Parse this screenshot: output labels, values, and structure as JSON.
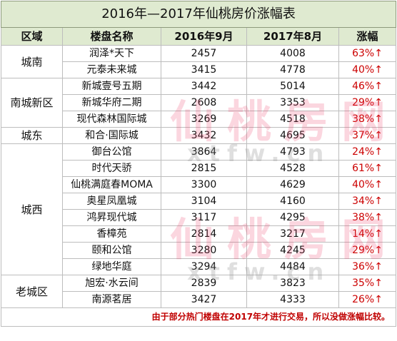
{
  "title": "2016年—2017年仙桃房价涨幅表",
  "headers": [
    "区域",
    "楼盘名称",
    "2016年9月",
    "2017年8月",
    "涨幅"
  ],
  "regions": [
    "城南",
    "南城新区",
    "城东",
    "城西",
    "老城区"
  ],
  "rows": [
    {
      "name": "润泽*天下",
      "p2016": "2457",
      "p2017": "4008",
      "pct": "63%↑"
    },
    {
      "name": "元泰未来城",
      "p2016": "3415",
      "p2017": "4778",
      "pct": "40%↑"
    },
    {
      "name": "新城壹号五期",
      "p2016": "3442",
      "p2017": "5014",
      "pct": "46%↑"
    },
    {
      "name": "新城华府二期",
      "p2016": "2608",
      "p2017": "3353",
      "pct": "29%↑"
    },
    {
      "name": "现代森林国际城",
      "p2016": "3269",
      "p2017": "4518",
      "pct": "38%↑"
    },
    {
      "name": "和合·国际城",
      "p2016": "3432",
      "p2017": "4695",
      "pct": "37%↑"
    },
    {
      "name": "御台公馆",
      "p2016": "3864",
      "p2017": "4793",
      "pct": "24%↑"
    },
    {
      "name": "时代天骄",
      "p2016": "2815",
      "p2017": "4528",
      "pct": "61%↑"
    },
    {
      "name": "仙桃满庭春MOMA",
      "p2016": "3300",
      "p2017": "4629",
      "pct": "40%↑"
    },
    {
      "name": "奥星凤凰城",
      "p2016": "3104",
      "p2017": "4160",
      "pct": "34%↑"
    },
    {
      "name": "鸿昇现代城",
      "p2016": "3117",
      "p2017": "4295",
      "pct": "38%↑"
    },
    {
      "name": "香樟苑",
      "p2016": "2814",
      "p2017": "3217",
      "pct": "14%↑"
    },
    {
      "name": "颐和公馆",
      "p2016": "3280",
      "p2017": "4245",
      "pct": "29%↑"
    },
    {
      "name": "绿地华庭",
      "p2016": "3294",
      "p2017": "4484",
      "pct": "36%↑"
    },
    {
      "name": "旭宏·水云间",
      "p2016": "2839",
      "p2017": "3823",
      "pct": "35%↑"
    },
    {
      "name": "南源茗居",
      "p2016": "3427",
      "p2017": "4333",
      "pct": "26%↑"
    }
  ],
  "note": "由于部分热门楼盘在2017年才进行交易，所以没做涨幅比较。",
  "watermark": {
    "cn": "仙桃房网",
    "en": "xtfw.cn"
  }
}
